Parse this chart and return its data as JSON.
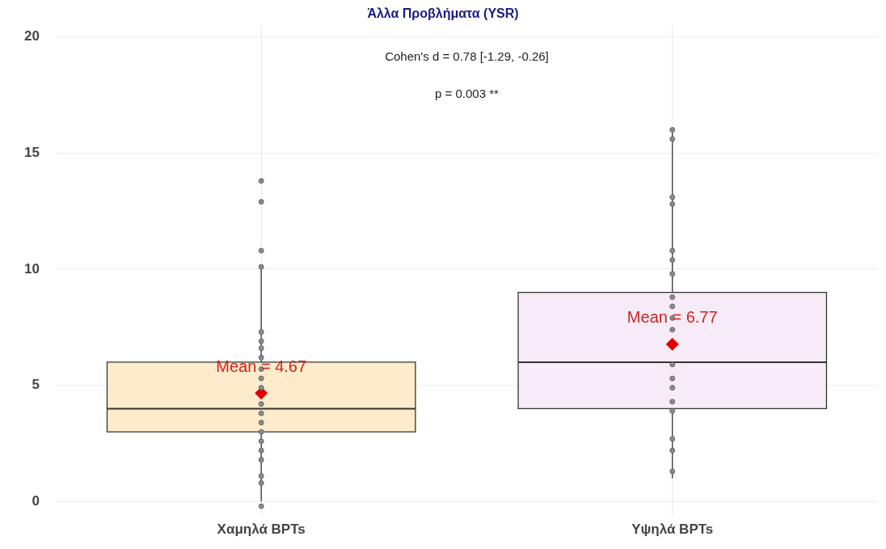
{
  "chart_data": {
    "type": "box",
    "title": "Άλλα Προβλήματα (YSR)",
    "annotations": [
      "Cohen's d = 0.78 [-1.29, -0.26]",
      "p = 0.003 **",
      "Mean = 4.67",
      "Mean = 6.77"
    ],
    "categories": [
      "Χαμηλά BPTs",
      "Υψηλά BPTs"
    ],
    "boxes": [
      {
        "low": 0,
        "q1": 3,
        "median": 4,
        "q3": 6,
        "high": 10,
        "mean": 4.67
      },
      {
        "low": 1,
        "q1": 4,
        "median": 6,
        "q3": 9,
        "high": 16,
        "mean": 6.77
      }
    ],
    "colors": [
      "#fdebcb",
      "#f6ebf6"
    ],
    "series": [
      {
        "type": "scatter",
        "color": "#8c8c8c",
        "x": [
          "Χαμηλά BPTs",
          "Χαμηλά BPTs",
          "Χαμηλά BPTs",
          "Χαμηλά BPTs",
          "Χαμηλά BPTs",
          "Χαμηλά BPTs",
          "Χαμηλά BPTs",
          "Χαμηλά BPTs",
          "Χαμηλά BPTs",
          "Χαμηλά BPTs",
          "Χαμηλά BPTs",
          "Χαμηλά BPTs",
          "Χαμηλά BPTs",
          "Χαμηλά BPTs",
          "Χαμηλά BPTs",
          "Χαμηλά BPTs",
          "Χαμηλά BPTs",
          "Χαμηλά BPTs",
          "Χαμηλά BPTs",
          "Χαμηλά BPTs",
          "Χαμηλά BPTs",
          "Υψηλά BPTs",
          "Υψηλά BPTs",
          "Υψηλά BPTs",
          "Υψηλά BPTs",
          "Υψηλά BPTs",
          "Υψηλά BPTs",
          "Υψηλά BPTs",
          "Υψηλά BPTs",
          "Υψηλά BPTs",
          "Υψηλά BPTs",
          "Υψηλά BPTs",
          "Υψηλά BPTs",
          "Υψηλά BPTs",
          "Υψηλά BPTs",
          "Υψηλά BPTs",
          "Υψηλά BPTs",
          "Υψηλά BPTs",
          "Υψηλά BPTs",
          "Υψηλά BPTs"
        ],
        "values": [
          13.8,
          12.9,
          10.8,
          10.1,
          7.3,
          6.9,
          6.6,
          6.2,
          5.7,
          5.3,
          4.9,
          4.2,
          3.8,
          3.4,
          3.0,
          2.6,
          2.2,
          1.8,
          1.1,
          0.8,
          -0.2,
          16.0,
          15.6,
          13.1,
          12.8,
          10.8,
          10.4,
          9.8,
          8.8,
          8.4,
          7.9,
          7.4,
          5.9,
          5.3,
          4.9,
          4.3,
          3.9,
          2.7,
          2.2,
          1.3
        ]
      }
    ],
    "ylim": [
      -0.6,
      20.5
    ],
    "yticks": [
      0,
      5,
      10,
      15,
      20
    ],
    "grid": true,
    "marker": "circle"
  }
}
